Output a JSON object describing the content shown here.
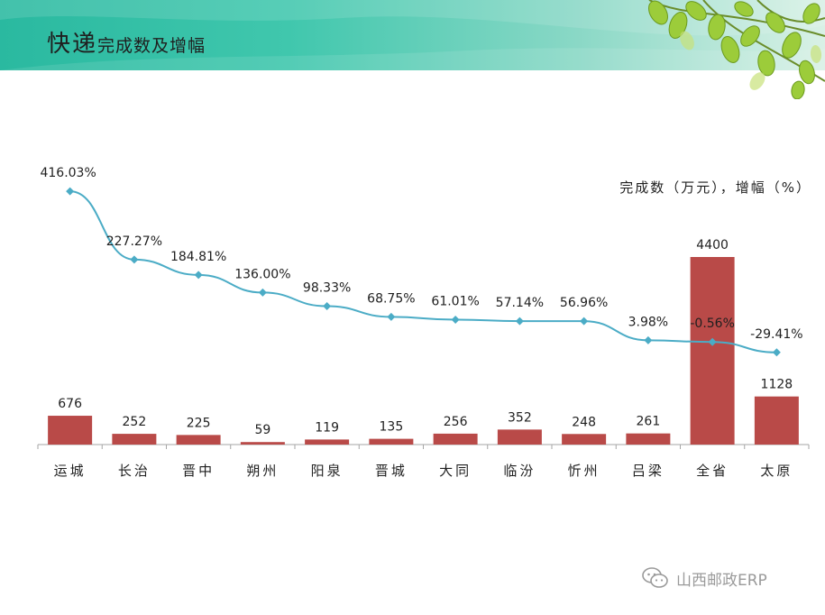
{
  "slide": {
    "title_main": "快递",
    "title_sub": "完成数及增幅"
  },
  "watermark": {
    "text": "山西邮政ERP",
    "icon": "wechat-icon"
  },
  "colors": {
    "bar": "#b94a48",
    "line": "#4bacc6",
    "axis": "#a6a6a6",
    "text": "#1f1f1f"
  },
  "chart_data": {
    "type": "bar+line",
    "unit_label": "完成数（万元），增幅（%）",
    "categories": [
      "运城",
      "长治",
      "晋中",
      "朔州",
      "阳泉",
      "晋城",
      "大同",
      "临汾",
      "忻州",
      "吕梁",
      "全省",
      "太原"
    ],
    "series": [
      {
        "name": "完成数",
        "type": "bar",
        "values": [
          676,
          252,
          225,
          59,
          119,
          135,
          256,
          352,
          248,
          261,
          4400,
          1128
        ],
        "labels": [
          "676",
          "252",
          "225",
          "59",
          "119",
          "135",
          "256",
          "352",
          "248",
          "261",
          "4400",
          "1128"
        ]
      },
      {
        "name": "增幅",
        "type": "line",
        "values": [
          416.03,
          227.27,
          184.81,
          136.0,
          98.33,
          68.75,
          61.01,
          57.14,
          56.96,
          3.98,
          -0.56,
          -29.41
        ],
        "labels": [
          "416.03%",
          "227.27%",
          "184.81%",
          "136.00%",
          "98.33%",
          "68.75%",
          "61.01%",
          "57.14%",
          "56.96%",
          "3.98%",
          "-0.56%",
          "-29.41%"
        ]
      }
    ],
    "legend": "none",
    "grid": false
  }
}
